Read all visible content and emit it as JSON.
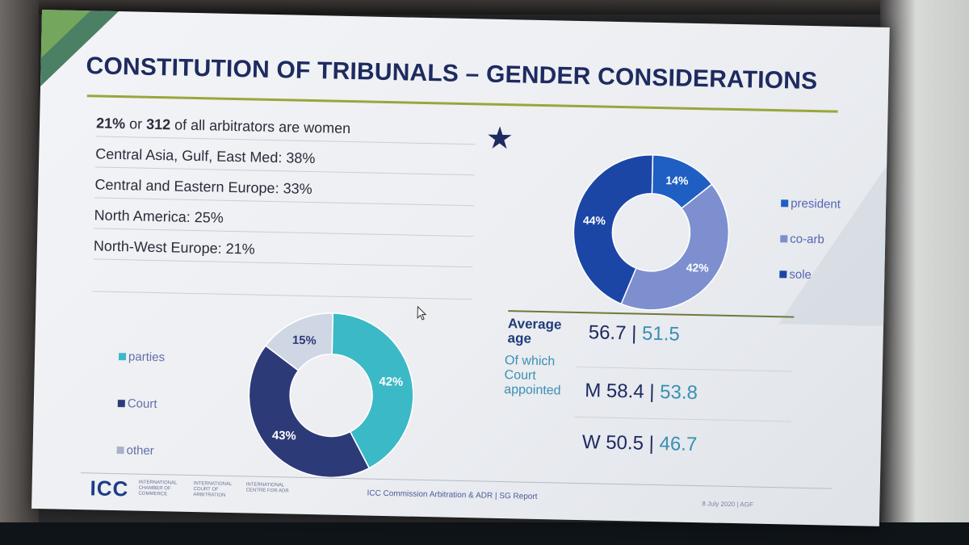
{
  "slide": {
    "title": "CONSTITUTION OF TRIBUNALS – GENDER CONSIDERATIONS",
    "stats": [
      {
        "bold_a": "21%",
        "mid": " or ",
        "bold_b": "312",
        "rest": " of all arbitrators are women"
      },
      {
        "text": "Central Asia, Gulf, East Med: 38%"
      },
      {
        "text": "Central and Eastern Europe: 33%"
      },
      {
        "text": "North America: 25%"
      },
      {
        "text": "North-West Europe: 21%"
      }
    ],
    "chart_top": {
      "legend": [
        "president",
        "co-arb",
        "sole"
      ]
    },
    "chart_bottom": {
      "legend": [
        "parties",
        "Court",
        "other"
      ]
    },
    "age": {
      "avg_label_1": "Average",
      "avg_label_2": "age",
      "avg_value_a": "56.7",
      "sep": " | ",
      "avg_value_b": "51.5",
      "court_label_1": "Of which",
      "court_label_2": "Court",
      "court_label_3": "appointed",
      "m_value_a": "M 58.4",
      "m_value_b": "53.8",
      "w_value_a": "W 50.5",
      "w_value_b": "46.7"
    },
    "footer": {
      "logo": "ICC",
      "logo_sub_1": "International Chamber of Commerce",
      "logo_sub_2": "International Court of Arbitration",
      "logo_sub_3": "International Centre for ADR",
      "center": "ICC Commission Arbitration & ADR | SG Report",
      "right": "8 July 2020 | AGF"
    }
  },
  "colors": {
    "title": "#1e2b60",
    "rule": "#9aa63a",
    "president": "#1f5fc4",
    "co_arb": "#7d8fcf",
    "sole": "#1c46a6",
    "parties": "#3bb9c6",
    "court": "#2d3a78",
    "other": "#cfd6e4"
  },
  "chart_data": [
    {
      "type": "pie",
      "categories": [
        "president",
        "co-arb",
        "sole"
      ],
      "values": [
        14,
        42,
        44
      ],
      "labels": [
        "14%",
        "42%",
        "44%"
      ]
    },
    {
      "type": "pie",
      "categories": [
        "parties",
        "Court",
        "other"
      ],
      "values": [
        42,
        43,
        15
      ],
      "labels": [
        "42%",
        "43%",
        "15%"
      ]
    }
  ]
}
